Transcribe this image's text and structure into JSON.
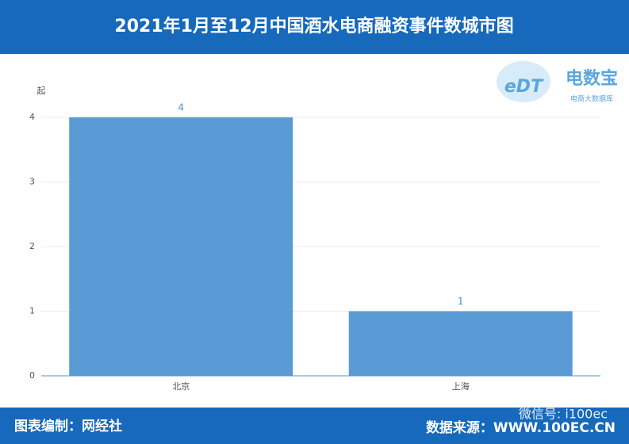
{
  "chart_data": {
    "type": "bar",
    "title": "2021年1月至12月中国酒水电商融资事件数城市图",
    "y_unit": "起",
    "categories": [
      "北京",
      "上海"
    ],
    "values": [
      4,
      1
    ],
    "color": "#5b9bd5",
    "ylim": [
      0,
      4
    ],
    "yticks": [
      0,
      1,
      2,
      3,
      4
    ],
    "grid": true
  },
  "logo": {
    "mark": "eDT",
    "name": "电数宝",
    "tagline": "电商大数据库"
  },
  "footer": {
    "credit": "图表编制：网经社",
    "source": "数据来源：WWW.100EC.CN",
    "watermark": "微信号: i100ec"
  }
}
